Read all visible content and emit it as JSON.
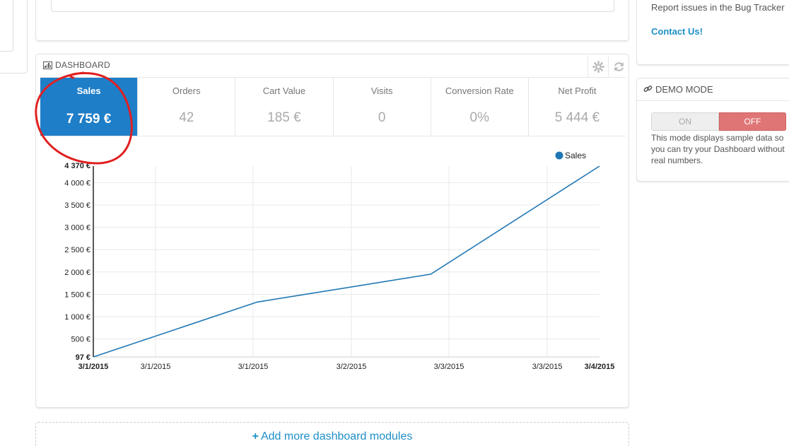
{
  "help": {
    "text": "Report issues in the Bug Tracker",
    "contact": "Contact Us!"
  },
  "dashboard": {
    "title": "DASHBOARD",
    "settings_icon": "gear-icon",
    "refresh_icon": "refresh-icon",
    "kpis": [
      {
        "label": "Sales",
        "value": "7 759 €"
      },
      {
        "label": "Orders",
        "value": "42"
      },
      {
        "label": "Cart Value",
        "value": "185 €"
      },
      {
        "label": "Visits",
        "value": "0"
      },
      {
        "label": "Conversion Rate",
        "value": "0%"
      },
      {
        "label": "Net Profit",
        "value": "5 444 €"
      }
    ],
    "active_kpi": "Sales"
  },
  "demo": {
    "title": "DEMO MODE",
    "on_label": "ON",
    "off_label": "OFF",
    "description": "This mode displays sample data so you can try your Dashboard without real numbers."
  },
  "add_modules": {
    "plus": "+",
    "label": "Add more dashboard modules"
  },
  "chart_data": {
    "type": "line",
    "series": [
      {
        "name": "Sales",
        "color": "#1f77b4",
        "points": [
          [
            0,
            97
          ],
          [
            1.65,
            1325
          ],
          [
            3.4,
            1950
          ],
          [
            5.1,
            4370
          ]
        ]
      }
    ],
    "x_tick_labels": [
      "3/1/2015",
      "3/1/2015",
      "3/1/2015",
      "3/2/2015",
      "3/3/2015",
      "3/3/2015",
      "3/4/2015"
    ],
    "y_ticks": [
      500,
      1000,
      1500,
      2000,
      2500,
      3000,
      3500,
      4000
    ],
    "y_tick_labels": [
      "500 €",
      "1 000 €",
      "1 500 €",
      "2 000 €",
      "2 500 €",
      "3 000 €",
      "3 500 €",
      "4 000 €"
    ],
    "y_min_label": "97 €",
    "y_max_label": "4 370 €",
    "ylim": [
      97,
      4370
    ],
    "xlim": [
      0,
      5.1
    ],
    "legend": "top-right",
    "grid": true
  }
}
